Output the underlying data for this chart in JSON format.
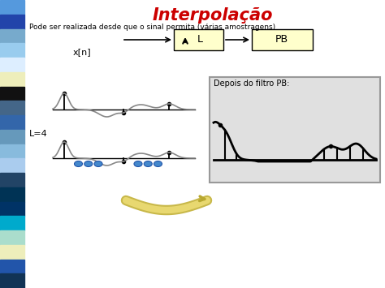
{
  "title": "Interpolação",
  "subtitle": "Pode ser realizada desde que o sinal permita (várias amostragens)",
  "background_color": "#ffffff",
  "title_color": "#cc0000",
  "box1_label": "L",
  "box2_label": "PB",
  "xn_label": "x[n]",
  "l4_label": "L=4",
  "depois_label": "Depois do filtro PB:",
  "sidebar_colors": [
    "#5588cc",
    "#3355aa",
    "#88bbdd",
    "#aaccee",
    "#ddeeff",
    "#eeeebb",
    "#000000",
    "#557799",
    "#4477aa",
    "#77aacc",
    "#99bbdd",
    "#bbddee",
    "#336688",
    "#224466",
    "#003366",
    "#00aacc",
    "#aaddcc",
    "#eeeebb",
    "#2255aa",
    "#113355"
  ]
}
